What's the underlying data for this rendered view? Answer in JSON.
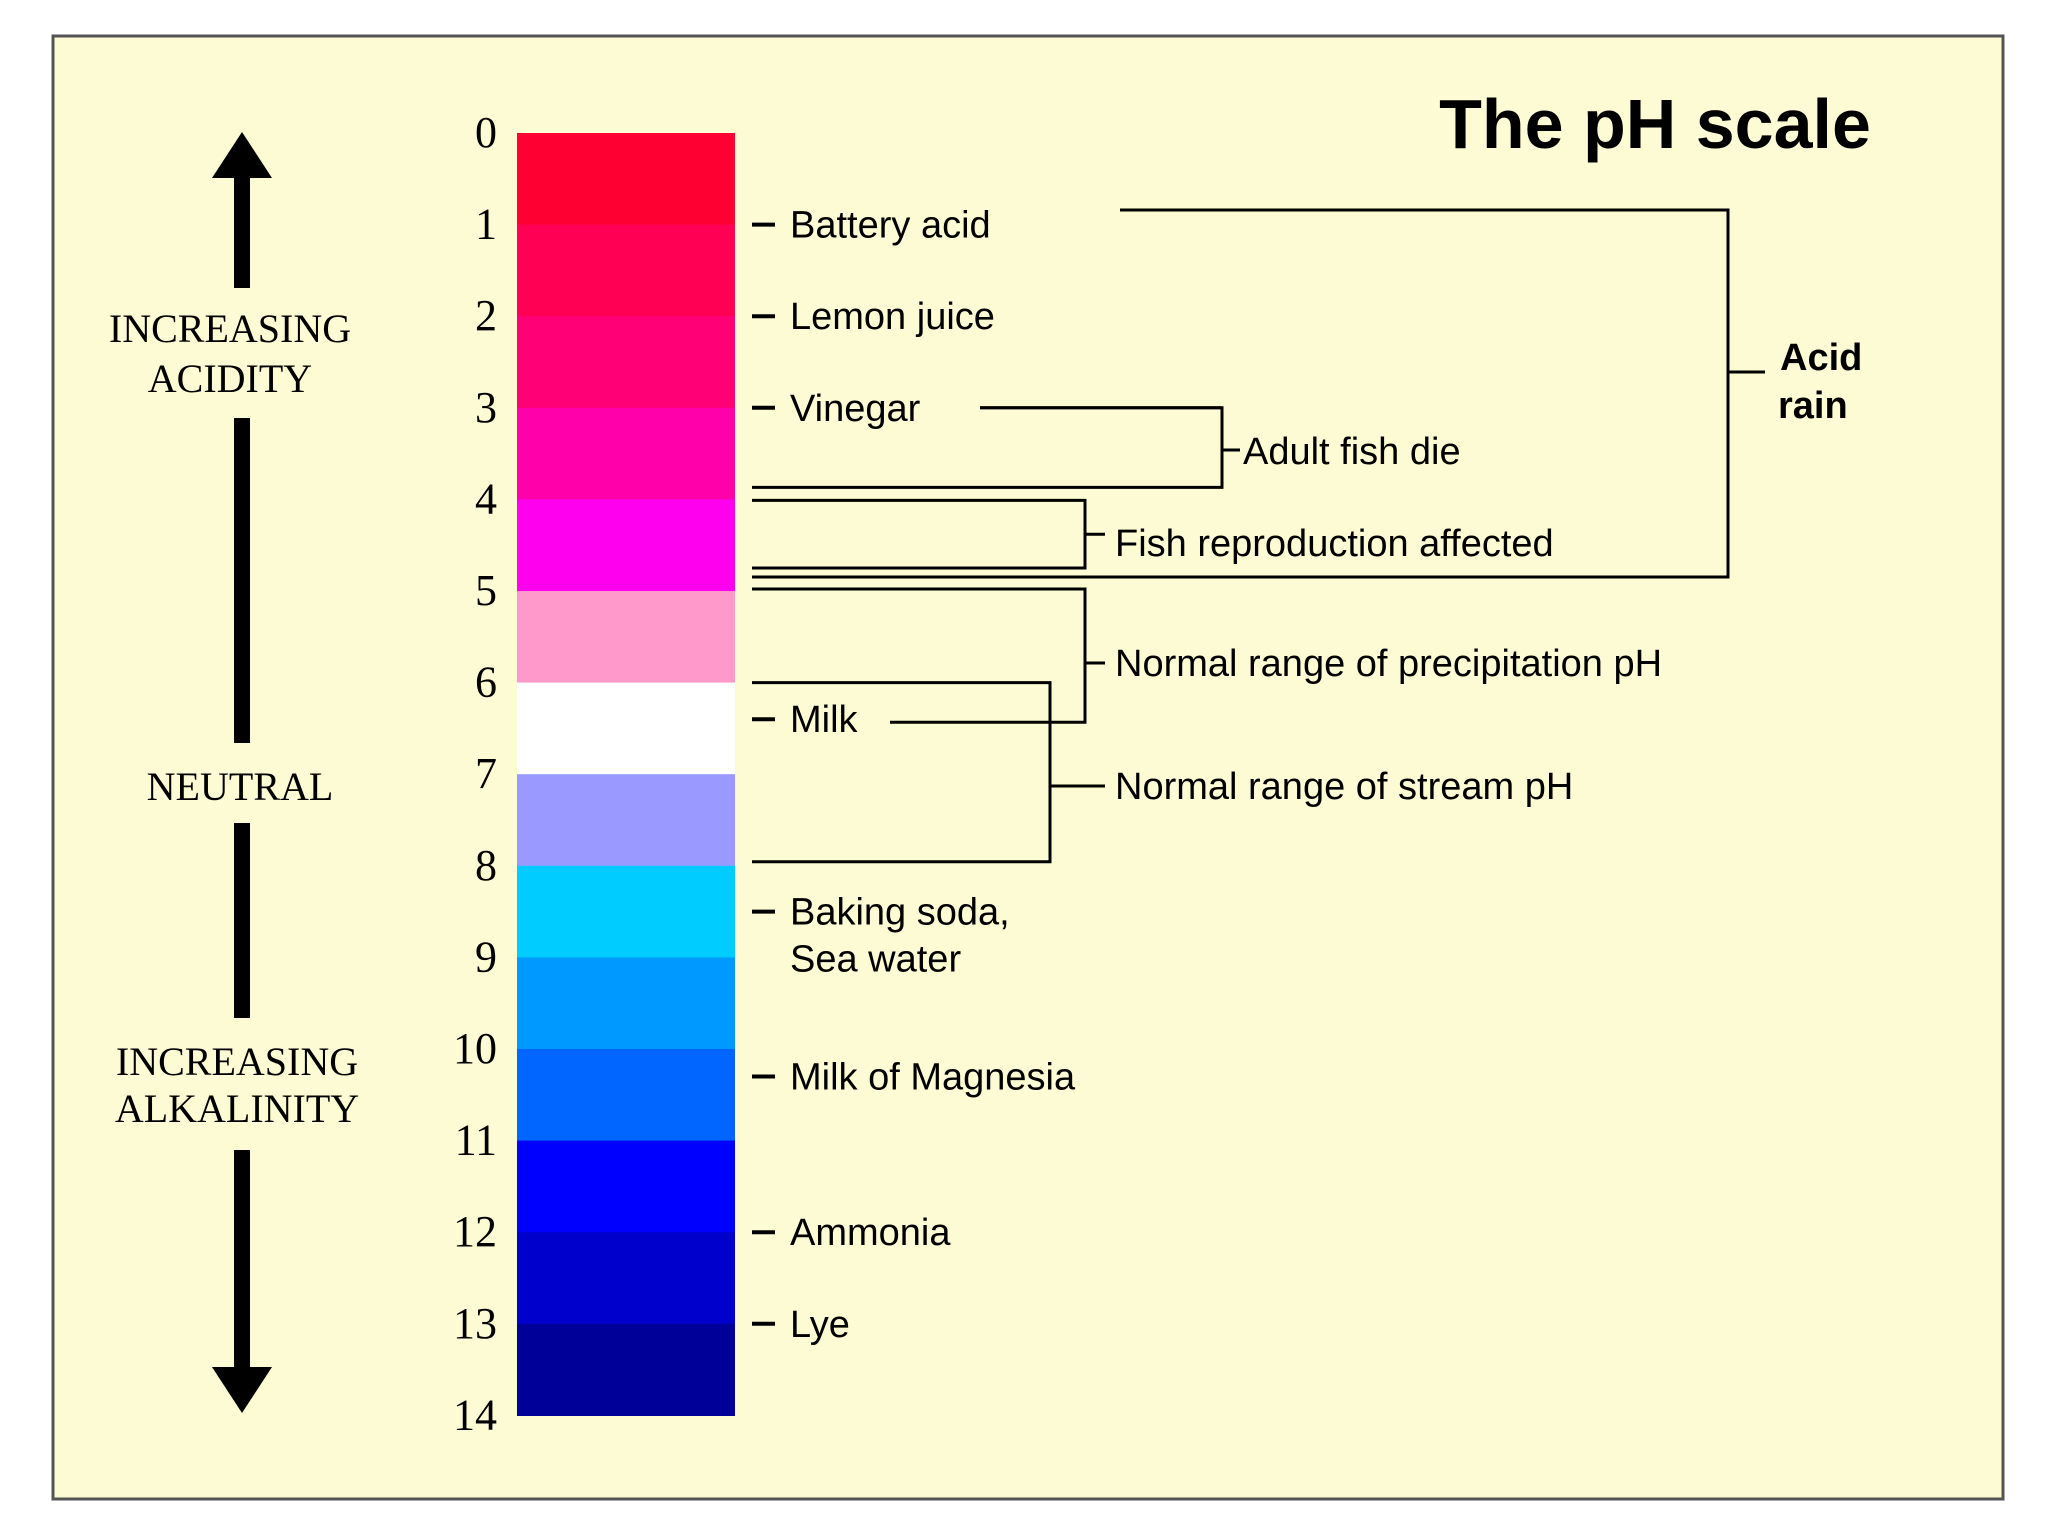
{
  "title": "The pH scale",
  "axis_labels": {
    "acidity": [
      "INCREASING",
      "ACIDITY"
    ],
    "neutral": "NEUTRAL",
    "alkalinity": [
      "INCREASING",
      "ALKALINITY"
    ]
  },
  "scale": {
    "numbers": [
      "0",
      "1",
      "2",
      "3",
      "4",
      "5",
      "6",
      "7",
      "8",
      "9",
      "10",
      "11",
      "12",
      "13",
      "14"
    ],
    "bands": [
      {
        "from": 0,
        "to": 1,
        "color": "#ff0033"
      },
      {
        "from": 1,
        "to": 2,
        "color": "#ff0055"
      },
      {
        "from": 2,
        "to": 3,
        "color": "#ff0077"
      },
      {
        "from": 3,
        "to": 4,
        "color": "#ff00aa"
      },
      {
        "from": 4,
        "to": 5,
        "color": "#ff00ee"
      },
      {
        "from": 5,
        "to": 6,
        "color": "#ff99cc"
      },
      {
        "from": 6,
        "to": 7,
        "color": "#ffffff"
      },
      {
        "from": 7,
        "to": 8,
        "color": "#9999ff"
      },
      {
        "from": 8,
        "to": 9,
        "color": "#00ccff"
      },
      {
        "from": 9,
        "to": 10,
        "color": "#0099ff"
      },
      {
        "from": 10,
        "to": 11,
        "color": "#0066ff"
      },
      {
        "from": 11,
        "to": 12,
        "color": "#0000ff"
      },
      {
        "from": 12,
        "to": 13,
        "color": "#0000cc"
      },
      {
        "from": 13,
        "to": 14,
        "color": "#000099"
      }
    ]
  },
  "substances": [
    {
      "name": "battery-acid",
      "lines": [
        "Battery acid"
      ],
      "ph": 1
    },
    {
      "name": "lemon-juice",
      "lines": [
        "Lemon juice"
      ],
      "ph": 2
    },
    {
      "name": "vinegar",
      "lines": [
        "Vinegar"
      ],
      "ph": 3
    },
    {
      "name": "milk",
      "lines": [
        "Milk"
      ],
      "ph": 6.4
    },
    {
      "name": "baking-soda-sea-water",
      "lines": [
        "Baking soda,",
        "Sea water"
      ],
      "ph": 8.5
    },
    {
      "name": "milk-of-magnesia",
      "lines": [
        "Milk of Magnesia"
      ],
      "ph": 10.3
    },
    {
      "name": "ammonia",
      "lines": [
        "Ammonia"
      ],
      "ph": 12
    },
    {
      "name": "lye",
      "lines": [
        "Lye"
      ],
      "ph": 13
    }
  ],
  "ranges": [
    {
      "name": "adult-fish-die",
      "label": "Adult fish die",
      "from": 3,
      "to": 4
    },
    {
      "name": "fish-reproduction-affected",
      "label": "Fish reproduction affected",
      "from": 4,
      "to": 5
    },
    {
      "name": "precipitation-range",
      "label": "Normal range of precipitation pH",
      "from": 5,
      "to": 6.4
    },
    {
      "name": "stream-range",
      "label": "Normal range of stream pH",
      "from": 6,
      "to": 8
    },
    {
      "name": "acid-rain",
      "label": [
        "Acid",
        "rain"
      ],
      "from": 1,
      "to": 5
    }
  ],
  "colors": {
    "background": "#fdfbd3",
    "frame": "#555555",
    "ink": "#000000"
  }
}
